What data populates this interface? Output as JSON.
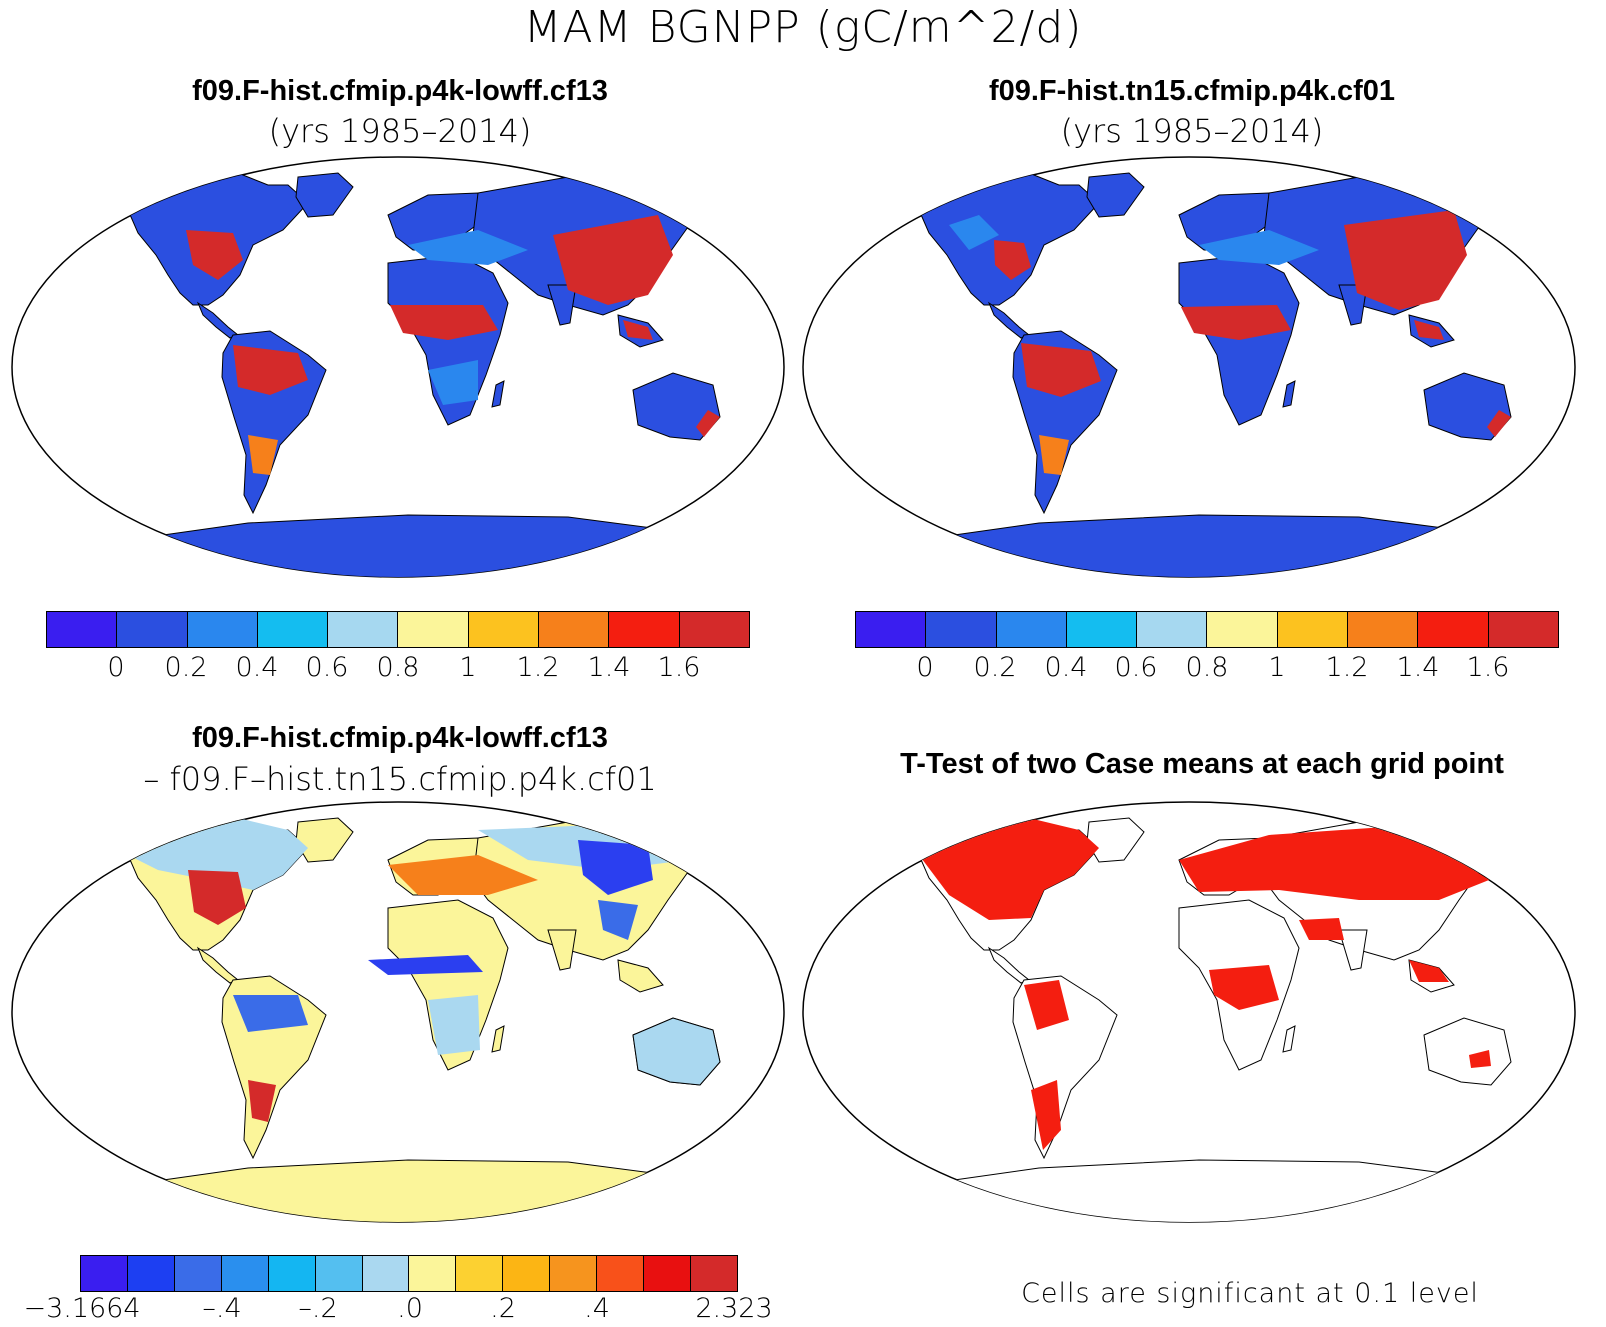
{
  "figure": {
    "title": "MAM BGNPP (gC/m^2/d)"
  },
  "panels": {
    "top_left": {
      "title": "f09.F-hist.cfmip.p4k-lowff.cf13",
      "subtitle": "(yrs 1985–2014)"
    },
    "top_right": {
      "title": "f09.F-hist.tn15.cfmip.p4k.cf01",
      "subtitle": "(yrs 1985–2014)"
    },
    "bottom_left": {
      "title": "f09.F-hist.cfmip.p4k-lowff.cf13",
      "subtitle": "– f09.F–hist.tn15.cfmip.p4k.cf01"
    },
    "bottom_right": {
      "title": "T-Test of two Case means at each grid point",
      "note": "Cells are significant at 0.1 level"
    }
  },
  "colorbars": {
    "absolute": {
      "colors": [
        "#3a1ef0",
        "#2b4fe0",
        "#2a87ee",
        "#14bdf0",
        "#a6d8f0",
        "#fbf59a",
        "#fcc21f",
        "#f6801b",
        "#f41e10",
        "#d42a2a"
      ],
      "labels": [
        "0",
        "0.2",
        "0.4",
        "0.6",
        "0.8",
        "1",
        "1.2",
        "1.4",
        "1.6"
      ]
    },
    "difference": {
      "colors": [
        "#3a1ef0",
        "#1d3ff2",
        "#3a6ce8",
        "#2a8fee",
        "#14b6f2",
        "#54bff0",
        "#aad8f0",
        "#fbf59a",
        "#fcd131",
        "#fcb514",
        "#f6941e",
        "#f8511a",
        "#e81010",
        "#d42a2a"
      ],
      "labels": [
        "−3.1664",
        "–.4",
        "–.2",
        ".0",
        ".2",
        ".4",
        "2.323"
      ]
    }
  },
  "map_colors": {
    "ocean": "#ffffff",
    "land_low": "#2b4fe0",
    "land_mid": "#2a87ee",
    "land_high": "#d42a2a",
    "diff_neutral": "#fbf59a",
    "diff_light": "#aad8f0",
    "diff_pos": "#d42a2a",
    "diff_neg": "#2b3ff0",
    "significant": "#f41e10",
    "coast": "#000000"
  },
  "map_icons": [
    "world-map-robinson"
  ]
}
